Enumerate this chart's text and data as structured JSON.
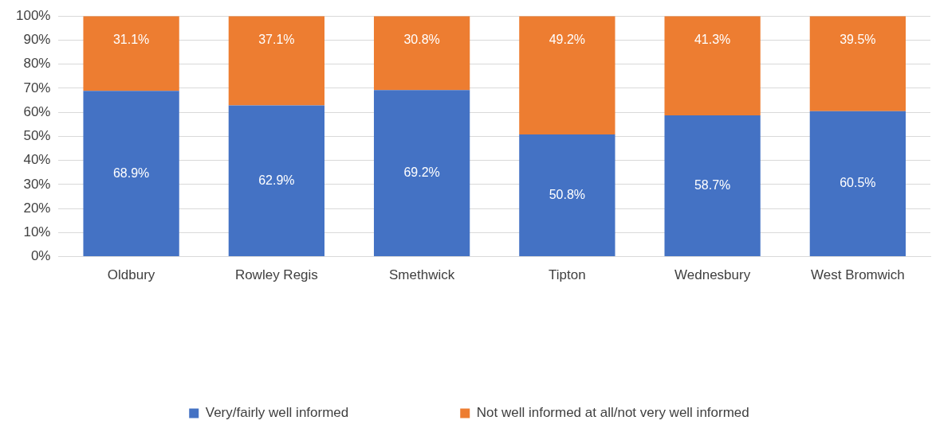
{
  "chart_data": {
    "type": "bar",
    "stacked": true,
    "categories": [
      "Oldbury",
      "Rowley Regis",
      "Smethwick",
      "Tipton",
      "Wednesbury",
      "West Bromwich"
    ],
    "series": [
      {
        "name": "Very/fairly well informed",
        "color": "#4472c4",
        "values": [
          68.9,
          62.9,
          69.2,
          50.8,
          58.7,
          60.5
        ],
        "value_labels": [
          "68.9%",
          "62.9%",
          "69.2%",
          "50.8%",
          "58.7%",
          "60.5%"
        ]
      },
      {
        "name": "Not well informed at all/not very well informed",
        "color": "#ed7d31",
        "values": [
          31.1,
          37.1,
          30.8,
          49.2,
          41.3,
          39.5
        ],
        "value_labels": [
          "31.1%",
          "37.1%",
          "30.8%",
          "49.2%",
          "41.3%",
          "39.5%"
        ]
      }
    ],
    "ylim": [
      0,
      100
    ],
    "yticks": [
      {
        "value": 0,
        "label": "0%"
      },
      {
        "value": 10,
        "label": "10%"
      },
      {
        "value": 20,
        "label": "20%"
      },
      {
        "value": 30,
        "label": "30%"
      },
      {
        "value": 40,
        "label": "40%"
      },
      {
        "value": 50,
        "label": "50%"
      },
      {
        "value": 60,
        "label": "60%"
      },
      {
        "value": 70,
        "label": "70%"
      },
      {
        "value": 80,
        "label": "80%"
      },
      {
        "value": 90,
        "label": "90%"
      },
      {
        "value": 100,
        "label": "100%"
      }
    ],
    "grid": "y",
    "legend": "bottom"
  }
}
